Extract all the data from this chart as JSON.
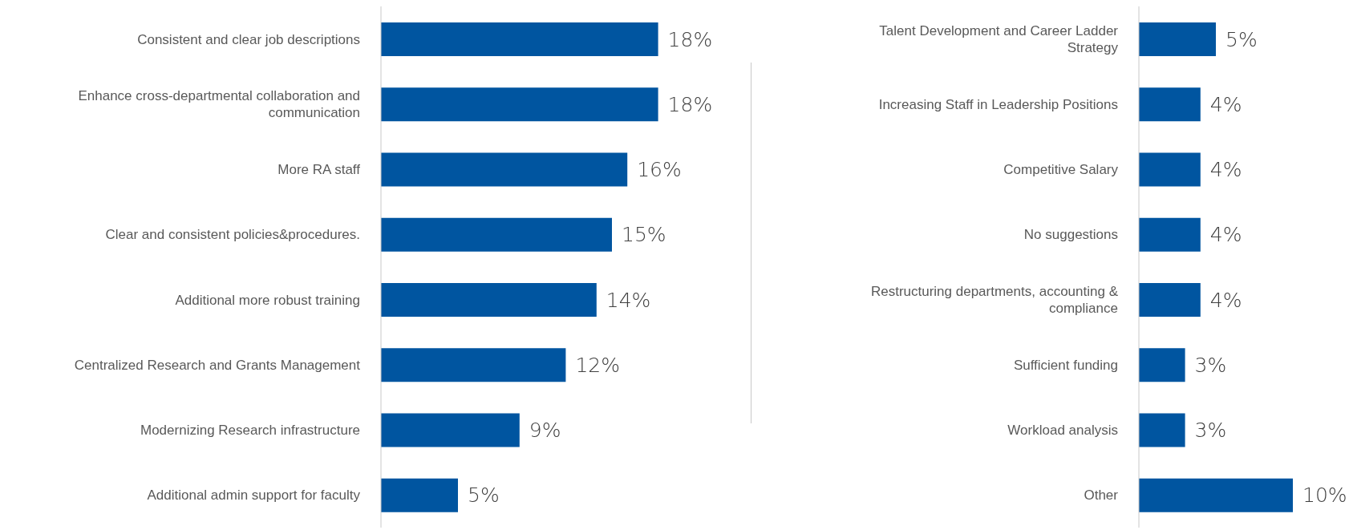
{
  "chart_data": [
    {
      "type": "bar",
      "orientation": "horizontal",
      "categories": [
        "Consistent and clear job descriptions",
        "Enhance cross-departmental collaboration and communication",
        "More RA staff",
        "Clear and consistent policies&procedures.",
        "Additional more robust training",
        "Centralized Research and Grants Management",
        "Modernizing Research infrastructure",
        "Additional admin support for faculty"
      ],
      "values": [
        18,
        18,
        16,
        15,
        14,
        12,
        9,
        5
      ],
      "value_labels": [
        "18%",
        "18%",
        "16%",
        "15%",
        "14%",
        "12%",
        "9%",
        "5%"
      ],
      "color": "#0055a0",
      "grid": false,
      "legend": false
    },
    {
      "type": "bar",
      "orientation": "horizontal",
      "categories": [
        "Talent Development and Career Ladder Strategy",
        "Increasing Staff in Leadership Positions",
        "Competitive Salary",
        "No suggestions",
        "Restructuring departments, accounting & compliance",
        "Sufficient funding",
        "Workload analysis",
        "Other"
      ],
      "values": [
        5,
        4,
        4,
        4,
        4,
        3,
        3,
        10
      ],
      "value_labels": [
        "5%",
        "4%",
        "4%",
        "4%",
        "4%",
        "3%",
        "3%",
        "10%"
      ],
      "color": "#0055a0",
      "grid": false,
      "legend": false
    }
  ]
}
